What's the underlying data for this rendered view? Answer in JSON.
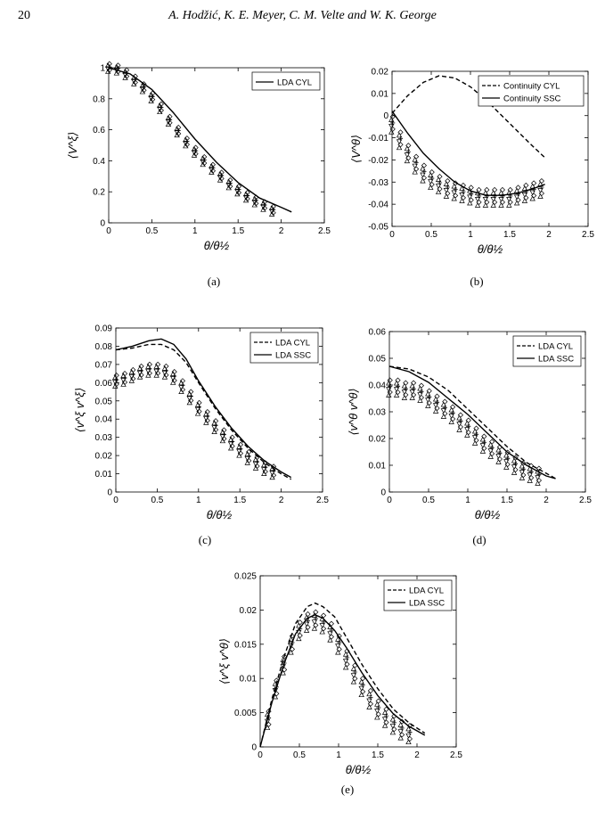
{
  "page": {
    "page_number": "20",
    "running_head": "A. Hodžić, K. E. Meyer, C. M. Velte and W. K. George"
  },
  "chart_data": [
    {
      "panel": "(a)",
      "type": "line",
      "xlabel": "θ/θ½",
      "ylabel": "⟨V^ξ⟩",
      "xlim": [
        0,
        2.5
      ],
      "ylim": [
        0,
        1
      ],
      "xticks": [
        "0",
        "0.5",
        "1",
        "1.5",
        "2",
        "2.5"
      ],
      "yticks": [
        "0",
        "0.2",
        "0.4",
        "0.6",
        "0.8",
        "1"
      ],
      "legend_position": "top-right",
      "series": [
        {
          "name": "LDA CYL",
          "style": "solid",
          "x": [
            0,
            0.25,
            0.5,
            0.75,
            1.0,
            1.25,
            1.5,
            1.75,
            2.0,
            2.12
          ],
          "values": [
            1.0,
            0.96,
            0.86,
            0.71,
            0.54,
            0.39,
            0.26,
            0.16,
            0.1,
            0.07
          ]
        }
      ],
      "scatter_x": [
        0,
        0.1,
        0.2,
        0.3,
        0.4,
        0.5,
        0.6,
        0.7,
        0.8,
        0.9,
        1.0,
        1.1,
        1.2,
        1.3,
        1.4,
        1.5,
        1.6,
        1.7,
        1.8,
        1.9
      ],
      "scatter_y": [
        1.0,
        0.99,
        0.96,
        0.92,
        0.87,
        0.81,
        0.74,
        0.66,
        0.59,
        0.52,
        0.46,
        0.4,
        0.35,
        0.3,
        0.25,
        0.21,
        0.17,
        0.14,
        0.11,
        0.08
      ],
      "scatter_spread": 0.025
    },
    {
      "panel": "(b)",
      "type": "line",
      "xlabel": "θ/θ½",
      "ylabel": "⟨V^θ⟩",
      "xlim": [
        0,
        2.5
      ],
      "ylim": [
        -0.05,
        0.02
      ],
      "xticks": [
        "0",
        "0.5",
        "1",
        "1.5",
        "2",
        "2.5"
      ],
      "yticks": [
        "-0.05",
        "-0.04",
        "-0.03",
        "-0.02",
        "-0.01",
        "0",
        "0.01",
        "0.02"
      ],
      "legend_position": "top-right",
      "series": [
        {
          "name": "Continuity CYL",
          "style": "dashed",
          "x": [
            0,
            0.2,
            0.4,
            0.6,
            0.8,
            1.0,
            1.2,
            1.4,
            1.6,
            1.8,
            1.95
          ],
          "values": [
            0.001,
            0.009,
            0.015,
            0.018,
            0.017,
            0.013,
            0.007,
            0.0,
            -0.007,
            -0.014,
            -0.019
          ]
        },
        {
          "name": "Continuity SSC",
          "style": "solid",
          "x": [
            0,
            0.2,
            0.4,
            0.6,
            0.8,
            1.0,
            1.2,
            1.4,
            1.6,
            1.8,
            1.95
          ],
          "values": [
            0.002,
            -0.008,
            -0.017,
            -0.024,
            -0.03,
            -0.034,
            -0.036,
            -0.036,
            -0.035,
            -0.033,
            -0.031
          ]
        }
      ],
      "scatter_x": [
        0,
        0.1,
        0.2,
        0.3,
        0.4,
        0.5,
        0.6,
        0.7,
        0.8,
        0.9,
        1.0,
        1.1,
        1.2,
        1.3,
        1.4,
        1.5,
        1.6,
        1.7,
        1.8,
        1.9
      ],
      "scatter_y": [
        -0.004,
        -0.011,
        -0.017,
        -0.022,
        -0.026,
        -0.029,
        -0.031,
        -0.033,
        -0.034,
        -0.035,
        -0.036,
        -0.037,
        -0.037,
        -0.037,
        -0.037,
        -0.037,
        -0.036,
        -0.035,
        -0.034,
        -0.033
      ],
      "scatter_spread": 0.0035
    },
    {
      "panel": "(c)",
      "type": "line",
      "xlabel": "θ/θ½",
      "ylabel": "⟨v^ξ v^ξ⟩",
      "xlim": [
        0,
        2.5
      ],
      "ylim": [
        0,
        0.09
      ],
      "xticks": [
        "0",
        "0.5",
        "1",
        "1.5",
        "2",
        "2.5"
      ],
      "yticks": [
        "0",
        "0.01",
        "0.02",
        "0.03",
        "0.04",
        "0.05",
        "0.06",
        "0.07",
        "0.08",
        "0.09"
      ],
      "legend_position": "top-right",
      "series": [
        {
          "name": "LDA CYL",
          "style": "dashed",
          "x": [
            0,
            0.2,
            0.4,
            0.55,
            0.7,
            0.85,
            1.0,
            1.2,
            1.4,
            1.6,
            1.8,
            2.0,
            2.12
          ],
          "values": [
            0.078,
            0.079,
            0.081,
            0.081,
            0.078,
            0.071,
            0.06,
            0.046,
            0.034,
            0.024,
            0.016,
            0.01,
            0.007
          ]
        },
        {
          "name": "LDA SSC",
          "style": "solid",
          "x": [
            0,
            0.2,
            0.4,
            0.55,
            0.7,
            0.85,
            1.0,
            1.2,
            1.4,
            1.6,
            1.8,
            2.0,
            2.12
          ],
          "values": [
            0.078,
            0.08,
            0.083,
            0.084,
            0.081,
            0.073,
            0.061,
            0.047,
            0.035,
            0.025,
            0.017,
            0.011,
            0.008
          ]
        }
      ],
      "scatter_x": [
        0,
        0.1,
        0.2,
        0.3,
        0.4,
        0.5,
        0.6,
        0.7,
        0.8,
        0.9,
        1.0,
        1.1,
        1.2,
        1.3,
        1.4,
        1.5,
        1.6,
        1.7,
        1.8,
        1.9
      ],
      "scatter_y": [
        0.061,
        0.062,
        0.064,
        0.066,
        0.067,
        0.067,
        0.066,
        0.063,
        0.058,
        0.052,
        0.046,
        0.041,
        0.036,
        0.031,
        0.027,
        0.023,
        0.019,
        0.016,
        0.013,
        0.011
      ],
      "scatter_spread": 0.003
    },
    {
      "panel": "(d)",
      "type": "line",
      "xlabel": "θ/θ½",
      "ylabel": "⟨v^θ v^θ⟩",
      "xlim": [
        0,
        2.5
      ],
      "ylim": [
        0,
        0.06
      ],
      "xticks": [
        "0",
        "0.5",
        "1",
        "1.5",
        "2",
        "2.5"
      ],
      "yticks": [
        "0",
        "0.01",
        "0.02",
        "0.03",
        "0.04",
        "0.05",
        "0.06"
      ],
      "legend_position": "top-right",
      "series": [
        {
          "name": "LDA CYL",
          "style": "dashed",
          "x": [
            0,
            0.25,
            0.5,
            0.75,
            1.0,
            1.25,
            1.5,
            1.75,
            2.0,
            2.12
          ],
          "values": [
            0.047,
            0.046,
            0.043,
            0.038,
            0.031,
            0.024,
            0.017,
            0.011,
            0.007,
            0.005
          ]
        },
        {
          "name": "LDA SSC",
          "style": "solid",
          "x": [
            0,
            0.25,
            0.5,
            0.75,
            1.0,
            1.25,
            1.5,
            1.75,
            2.0,
            2.12
          ],
          "values": [
            0.047,
            0.045,
            0.041,
            0.035,
            0.029,
            0.022,
            0.015,
            0.01,
            0.006,
            0.005
          ]
        }
      ],
      "scatter_x": [
        0,
        0.1,
        0.2,
        0.3,
        0.4,
        0.5,
        0.6,
        0.7,
        0.8,
        0.9,
        1.0,
        1.1,
        1.2,
        1.3,
        1.4,
        1.5,
        1.6,
        1.7,
        1.8,
        1.9
      ],
      "scatter_y": [
        0.039,
        0.039,
        0.038,
        0.038,
        0.037,
        0.035,
        0.033,
        0.031,
        0.029,
        0.026,
        0.024,
        0.021,
        0.018,
        0.016,
        0.014,
        0.012,
        0.01,
        0.008,
        0.007,
        0.006
      ],
      "scatter_spread": 0.0028
    },
    {
      "panel": "(e)",
      "type": "line",
      "xlabel": "θ/θ½",
      "ylabel": "⟨v^ξ v^θ⟩",
      "xlim": [
        0,
        2.5
      ],
      "ylim": [
        0,
        0.025
      ],
      "xticks": [
        "0",
        "0.5",
        "1",
        "1.5",
        "2",
        "2.5"
      ],
      "yticks": [
        "0",
        "0.005",
        "0.01",
        "0.015",
        "0.02",
        "0.025"
      ],
      "legend_position": "top-right",
      "series": [
        {
          "name": "LDA CYL",
          "style": "dashed",
          "x": [
            0,
            0.15,
            0.3,
            0.45,
            0.6,
            0.7,
            0.8,
            0.95,
            1.1,
            1.3,
            1.5,
            1.7,
            1.9,
            2.1
          ],
          "values": [
            0,
            0.007,
            0.013,
            0.018,
            0.0205,
            0.021,
            0.0205,
            0.019,
            0.016,
            0.012,
            0.0085,
            0.0055,
            0.0035,
            0.002
          ]
        },
        {
          "name": "LDA SSC",
          "style": "solid",
          "x": [
            0,
            0.15,
            0.3,
            0.45,
            0.6,
            0.7,
            0.8,
            0.95,
            1.1,
            1.3,
            1.5,
            1.7,
            1.9,
            2.1
          ],
          "values": [
            0,
            0.0065,
            0.012,
            0.0165,
            0.0188,
            0.0193,
            0.0188,
            0.017,
            0.0145,
            0.0108,
            0.0075,
            0.0048,
            0.003,
            0.0017
          ]
        }
      ],
      "scatter_x": [
        0.1,
        0.2,
        0.3,
        0.4,
        0.5,
        0.6,
        0.7,
        0.8,
        0.9,
        1.0,
        1.1,
        1.2,
        1.3,
        1.4,
        1.5,
        1.6,
        1.7,
        1.8,
        1.9
      ],
      "scatter_y": [
        0.004,
        0.0085,
        0.012,
        0.015,
        0.017,
        0.0182,
        0.0185,
        0.018,
        0.0168,
        0.015,
        0.0128,
        0.0107,
        0.0088,
        0.007,
        0.0055,
        0.0043,
        0.0033,
        0.0025,
        0.0019
      ],
      "scatter_spread": 0.0012
    }
  ]
}
